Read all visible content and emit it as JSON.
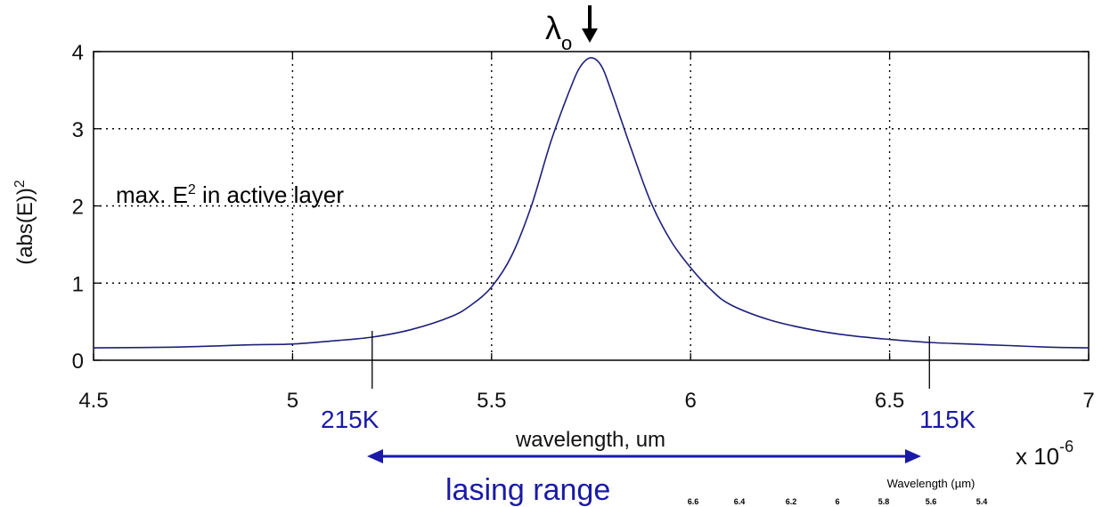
{
  "chart_data": {
    "type": "line",
    "title": "",
    "xlabel": "wavelength, um",
    "ylabel_base": "(abs(E))",
    "ylabel_sup": "2",
    "x_multiplier_base": "x 10",
    "x_multiplier_exp": "-6",
    "xlim": [
      4.5,
      7
    ],
    "ylim": [
      0,
      4
    ],
    "grid": true,
    "x_ticks": [
      4.5,
      5,
      5.5,
      6,
      6.5,
      7
    ],
    "x_tick_labels": [
      "4.5",
      "5",
      "5.5",
      "6",
      "6.5",
      "7"
    ],
    "y_ticks": [
      0,
      1,
      2,
      3,
      4
    ],
    "y_tick_labels": [
      "0",
      "1",
      "2",
      "3",
      "4"
    ],
    "series": [
      {
        "color": "#1f1f7a",
        "x": [
          4.5,
          4.7,
          4.9,
          5.0,
          5.1,
          5.2,
          5.3,
          5.4,
          5.45,
          5.5,
          5.55,
          5.6,
          5.65,
          5.7,
          5.725,
          5.75,
          5.775,
          5.8,
          5.85,
          5.9,
          5.95,
          6.0,
          6.05,
          6.1,
          6.2,
          6.3,
          6.4,
          6.5,
          6.6,
          6.7,
          6.8,
          6.9,
          7.0
        ],
        "y": [
          0.16,
          0.17,
          0.2,
          0.21,
          0.25,
          0.3,
          0.4,
          0.57,
          0.72,
          0.95,
          1.35,
          2.0,
          2.85,
          3.55,
          3.82,
          3.92,
          3.82,
          3.5,
          2.75,
          2.05,
          1.55,
          1.2,
          0.92,
          0.72,
          0.52,
          0.4,
          0.32,
          0.27,
          0.23,
          0.21,
          0.19,
          0.17,
          0.16
        ]
      }
    ],
    "annotations": {
      "peak_label_base": "λ",
      "peak_label_sub": "o",
      "peak_x": 5.75,
      "inside_label_base": "max. E",
      "inside_label_sup": "2",
      "inside_label_rest": " in active layer",
      "marker_left_x": 5.2,
      "marker_left_label": "215K",
      "marker_right_x": 6.6,
      "marker_right_label": "115K",
      "range_label": "lasing range",
      "annotation_color": "#1a1aa6"
    },
    "secondary_axis": {
      "title": "Wavelength (µm)",
      "tick_labels": [
        "6.6",
        "6.4",
        "6.2",
        "6",
        "5.8",
        "5.6",
        "5.4"
      ]
    }
  }
}
